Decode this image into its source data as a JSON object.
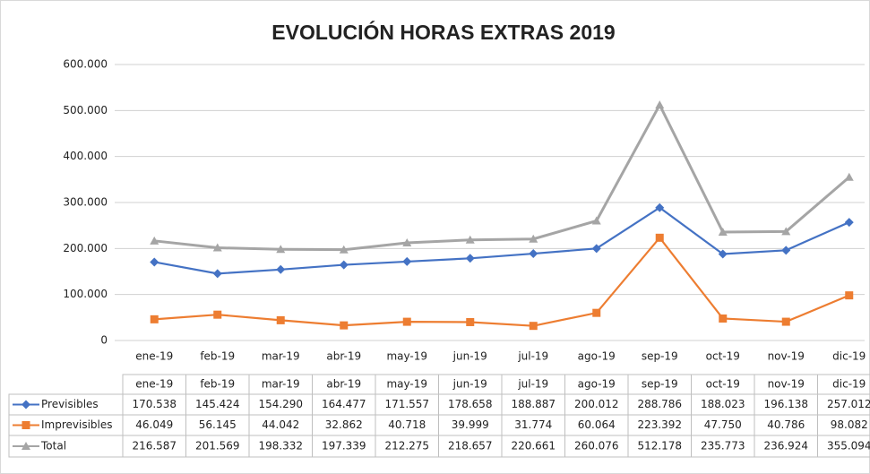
{
  "chart_data": {
    "type": "line",
    "title": "EVOLUCIÓN HORAS EXTRAS 2019",
    "categories": [
      "ene-19",
      "feb-19",
      "mar-19",
      "abr-19",
      "may-19",
      "jun-19",
      "jul-19",
      "ago-19",
      "sep-19",
      "oct-19",
      "nov-19",
      "dic-19"
    ],
    "series": [
      {
        "name": "Previsibles",
        "color": "#4472c4",
        "marker": "diamond",
        "values": [
          170538,
          145424,
          154290,
          164477,
          171557,
          178658,
          188887,
          200012,
          288786,
          188023,
          196138,
          257012
        ],
        "value_labels": [
          "170.538",
          "145.424",
          "154.290",
          "164.477",
          "171.557",
          "178.658",
          "188.887",
          "200.012",
          "288.786",
          "188.023",
          "196.138",
          "257.012"
        ]
      },
      {
        "name": "Imprevisibles",
        "color": "#ed7d31",
        "marker": "square",
        "values": [
          46049,
          56145,
          44042,
          32862,
          40718,
          39999,
          31774,
          60064,
          223392,
          47750,
          40786,
          98082
        ],
        "value_labels": [
          "46.049",
          "56.145",
          "44.042",
          "32.862",
          "40.718",
          "39.999",
          "31.774",
          "60.064",
          "223.392",
          "47.750",
          "40.786",
          "98.082"
        ]
      },
      {
        "name": "Total",
        "color": "#a5a5a5",
        "marker": "triangle",
        "values": [
          216587,
          201569,
          198332,
          197339,
          212275,
          218657,
          220661,
          260076,
          512178,
          235773,
          236924,
          355094
        ],
        "value_labels": [
          "216.587",
          "201.569",
          "198.332",
          "197.339",
          "212.275",
          "218.657",
          "220.661",
          "260.076",
          "512.178",
          "235.773",
          "236.924",
          "355.094"
        ]
      }
    ],
    "ylim": [
      0,
      600000
    ],
    "yticks": [
      0,
      {
        "value": 100000,
        "label": "100.000"
      },
      {
        "value": 200000,
        "label": "200.000"
      },
      {
        "value": 300000,
        "label": "300.000"
      },
      {
        "value": 400000,
        "label": "400.000"
      },
      {
        "value": 500000,
        "label": "500.000"
      },
      {
        "value": 600000,
        "label": "600.000"
      }
    ],
    "grid": true
  }
}
